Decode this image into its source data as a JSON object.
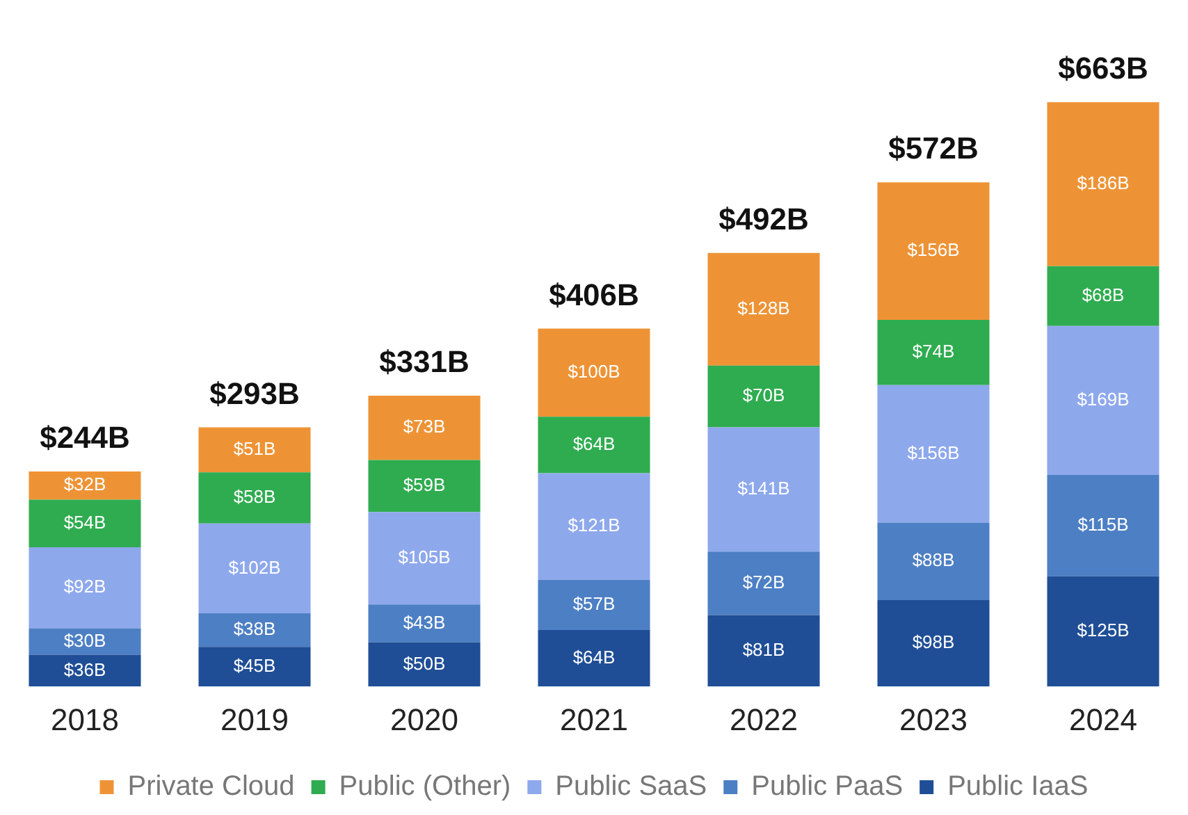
{
  "chart_data": {
    "type": "bar",
    "stacked": true,
    "categories": [
      "2018",
      "2019",
      "2020",
      "2021",
      "2022",
      "2023",
      "2024"
    ],
    "series": [
      {
        "name": "Public IaaS",
        "color": "#1f4e96",
        "values": [
          36,
          45,
          50,
          64,
          81,
          98,
          125
        ],
        "value_labels": [
          "$36B",
          "$45B",
          "$50B",
          "$64B",
          "$81B",
          "$98B",
          "$125B"
        ]
      },
      {
        "name": "Public PaaS",
        "color": "#4d7fc4",
        "values": [
          30,
          38,
          43,
          57,
          72,
          88,
          115
        ],
        "value_labels": [
          "$30B",
          "$38B",
          "$43B",
          "$57B",
          "$72B",
          "$88B",
          "$115B"
        ]
      },
      {
        "name": "Public SaaS",
        "color": "#8ea8ec",
        "values": [
          92,
          102,
          105,
          121,
          141,
          156,
          169
        ],
        "value_labels": [
          "$92B",
          "$102B",
          "$105B",
          "$121B",
          "$141B",
          "$156B",
          "$169B"
        ]
      },
      {
        "name": "Public (Other)",
        "color": "#2fac50",
        "values": [
          54,
          58,
          59,
          64,
          70,
          74,
          68
        ],
        "value_labels": [
          "$54B",
          "$58B",
          "$59B",
          "$64B",
          "$70B",
          "$74B",
          "$68B"
        ]
      },
      {
        "name": "Private Cloud",
        "color": "#ee9335",
        "values": [
          32,
          51,
          73,
          100,
          128,
          156,
          186
        ],
        "value_labels": [
          "$32B",
          "$51B",
          "$73B",
          "$100B",
          "$128B",
          "$156B",
          "$186B"
        ]
      }
    ],
    "totals": [
      "$244B",
      "$293B",
      "$331B",
      "$406B",
      "$492B",
      "$572B",
      "$663B"
    ],
    "legend": "bottom",
    "grid": false
  }
}
